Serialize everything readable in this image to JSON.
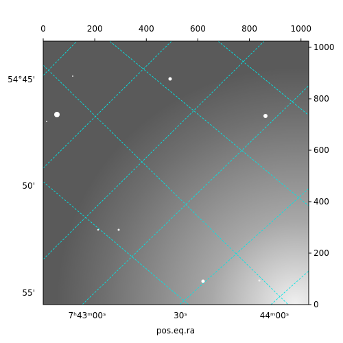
{
  "chart_data": {
    "type": "image",
    "xlabel": "pos.eq.ra",
    "xlim": [
      0,
      1030
    ],
    "xticks": [
      0,
      200,
      400,
      600,
      800,
      1000
    ],
    "ylim": [
      0,
      1024
    ],
    "yticks": [
      0,
      200,
      400,
      600,
      800,
      1000
    ],
    "dec_ticks": [
      "54°45'",
      "50'",
      "55'"
    ],
    "ra_ticks": [
      "7ʰ43ᵐ00ˢ",
      "30ˢ",
      "44ᵐ00ˢ"
    ],
    "grid": true,
    "grid_color": "#00e5e5"
  }
}
